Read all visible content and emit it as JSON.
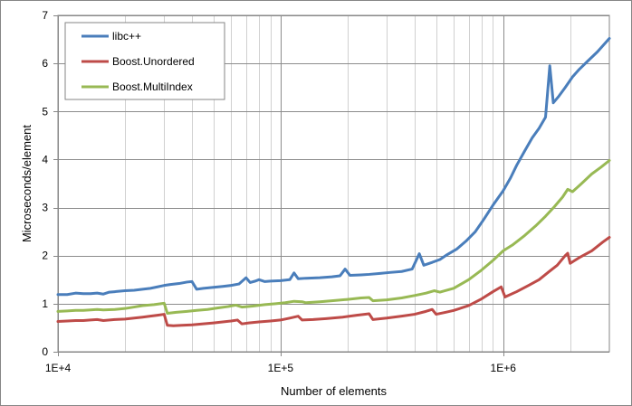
{
  "chart_data": {
    "type": "line",
    "title": "",
    "xlabel": "Number of elements",
    "ylabel": "Microseconds/element",
    "x_scale": "log",
    "xlim": [
      10000,
      3000000
    ],
    "ylim": [
      0,
      7
    ],
    "x_major_ticks": [
      10000,
      100000,
      1000000
    ],
    "x_tick_labels": [
      "1E+4",
      "1E+5",
      "1E+6"
    ],
    "y_ticks": [
      0,
      1,
      2,
      3,
      4,
      5,
      6,
      7
    ],
    "y_tick_labels": [
      "0",
      "1",
      "2",
      "3",
      "4",
      "5",
      "6",
      "7"
    ],
    "grid": "major and minor vertical, major horizontal",
    "legend_position": "top-left",
    "series": [
      {
        "name": "libc++",
        "color": "#4a7ebb",
        "points": [
          [
            10000,
            1.19
          ],
          [
            11000,
            1.19
          ],
          [
            12000,
            1.22
          ],
          [
            13000,
            1.21
          ],
          [
            14000,
            1.21
          ],
          [
            15000,
            1.22
          ],
          [
            16000,
            1.2
          ],
          [
            17000,
            1.24
          ],
          [
            18000,
            1.25
          ],
          [
            20000,
            1.27
          ],
          [
            22000,
            1.28
          ],
          [
            24000,
            1.3
          ],
          [
            26000,
            1.32
          ],
          [
            28000,
            1.35
          ],
          [
            30000,
            1.38
          ],
          [
            32000,
            1.4
          ],
          [
            35000,
            1.42
          ],
          [
            38000,
            1.45
          ],
          [
            40000,
            1.46
          ],
          [
            42000,
            1.3
          ],
          [
            45000,
            1.32
          ],
          [
            50000,
            1.34
          ],
          [
            55000,
            1.36
          ],
          [
            60000,
            1.38
          ],
          [
            65000,
            1.41
          ],
          [
            70000,
            1.54
          ],
          [
            73000,
            1.44
          ],
          [
            77000,
            1.47
          ],
          [
            80000,
            1.5
          ],
          [
            85000,
            1.46
          ],
          [
            90000,
            1.47
          ],
          [
            100000,
            1.48
          ],
          [
            110000,
            1.5
          ],
          [
            115000,
            1.64
          ],
          [
            120000,
            1.52
          ],
          [
            130000,
            1.53
          ],
          [
            150000,
            1.54
          ],
          [
            170000,
            1.56
          ],
          [
            185000,
            1.58
          ],
          [
            195000,
            1.72
          ],
          [
            205000,
            1.59
          ],
          [
            230000,
            1.6
          ],
          [
            250000,
            1.61
          ],
          [
            280000,
            1.63
          ],
          [
            310000,
            1.65
          ],
          [
            350000,
            1.67
          ],
          [
            390000,
            1.72
          ],
          [
            420000,
            2.04
          ],
          [
            440000,
            1.8
          ],
          [
            480000,
            1.86
          ],
          [
            520000,
            1.92
          ],
          [
            560000,
            2.02
          ],
          [
            620000,
            2.14
          ],
          [
            680000,
            2.3
          ],
          [
            750000,
            2.5
          ],
          [
            820000,
            2.76
          ],
          [
            900000,
            3.05
          ],
          [
            1000000,
            3.35
          ],
          [
            1080000,
            3.62
          ],
          [
            1150000,
            3.88
          ],
          [
            1250000,
            4.18
          ],
          [
            1350000,
            4.45
          ],
          [
            1450000,
            4.65
          ],
          [
            1550000,
            4.88
          ],
          [
            1620000,
            5.95
          ],
          [
            1680000,
            5.18
          ],
          [
            1780000,
            5.32
          ],
          [
            1900000,
            5.5
          ],
          [
            2050000,
            5.72
          ],
          [
            2200000,
            5.88
          ],
          [
            2400000,
            6.05
          ],
          [
            2650000,
            6.24
          ],
          [
            3000000,
            6.52
          ]
        ]
      },
      {
        "name": "Boost.Unordered",
        "color": "#be4b48",
        "points": [
          [
            10000,
            0.63
          ],
          [
            11000,
            0.64
          ],
          [
            12000,
            0.65
          ],
          [
            13000,
            0.65
          ],
          [
            14000,
            0.66
          ],
          [
            15000,
            0.67
          ],
          [
            16000,
            0.65
          ],
          [
            18000,
            0.67
          ],
          [
            20000,
            0.68
          ],
          [
            22000,
            0.7
          ],
          [
            24000,
            0.72
          ],
          [
            26000,
            0.74
          ],
          [
            28000,
            0.76
          ],
          [
            30000,
            0.78
          ],
          [
            31000,
            0.55
          ],
          [
            33000,
            0.54
          ],
          [
            36000,
            0.55
          ],
          [
            40000,
            0.56
          ],
          [
            45000,
            0.58
          ],
          [
            50000,
            0.6
          ],
          [
            55000,
            0.62
          ],
          [
            60000,
            0.64
          ],
          [
            64000,
            0.66
          ],
          [
            67000,
            0.58
          ],
          [
            72000,
            0.6
          ],
          [
            80000,
            0.62
          ],
          [
            90000,
            0.64
          ],
          [
            100000,
            0.66
          ],
          [
            110000,
            0.7
          ],
          [
            120000,
            0.74
          ],
          [
            125000,
            0.66
          ],
          [
            140000,
            0.67
          ],
          [
            160000,
            0.69
          ],
          [
            190000,
            0.72
          ],
          [
            220000,
            0.76
          ],
          [
            250000,
            0.79
          ],
          [
            260000,
            0.67
          ],
          [
            300000,
            0.7
          ],
          [
            350000,
            0.74
          ],
          [
            400000,
            0.78
          ],
          [
            450000,
            0.84
          ],
          [
            480000,
            0.88
          ],
          [
            500000,
            0.78
          ],
          [
            550000,
            0.82
          ],
          [
            600000,
            0.86
          ],
          [
            700000,
            0.96
          ],
          [
            800000,
            1.1
          ],
          [
            900000,
            1.25
          ],
          [
            980000,
            1.35
          ],
          [
            1020000,
            1.14
          ],
          [
            1150000,
            1.25
          ],
          [
            1300000,
            1.38
          ],
          [
            1450000,
            1.5
          ],
          [
            1600000,
            1.66
          ],
          [
            1750000,
            1.8
          ],
          [
            1900000,
            2.0
          ],
          [
            1950000,
            2.05
          ],
          [
            2000000,
            1.84
          ],
          [
            2200000,
            1.96
          ],
          [
            2500000,
            2.1
          ],
          [
            2800000,
            2.28
          ],
          [
            3000000,
            2.38
          ]
        ]
      },
      {
        "name": "Boost.MultiIndex",
        "color": "#98b954",
        "points": [
          [
            10000,
            0.84
          ],
          [
            11000,
            0.85
          ],
          [
            12000,
            0.86
          ],
          [
            13000,
            0.86
          ],
          [
            14000,
            0.87
          ],
          [
            15000,
            0.88
          ],
          [
            16000,
            0.87
          ],
          [
            18000,
            0.88
          ],
          [
            20000,
            0.9
          ],
          [
            22000,
            0.93
          ],
          [
            24000,
            0.96
          ],
          [
            27000,
            0.98
          ],
          [
            30000,
            1.01
          ],
          [
            31000,
            0.8
          ],
          [
            34000,
            0.82
          ],
          [
            38000,
            0.84
          ],
          [
            42000,
            0.86
          ],
          [
            47000,
            0.88
          ],
          [
            52000,
            0.91
          ],
          [
            58000,
            0.94
          ],
          [
            63000,
            0.97
          ],
          [
            67000,
            0.93
          ],
          [
            75000,
            0.95
          ],
          [
            85000,
            0.98
          ],
          [
            95000,
            1.0
          ],
          [
            105000,
            1.02
          ],
          [
            115000,
            1.05
          ],
          [
            125000,
            1.04
          ],
          [
            130000,
            1.02
          ],
          [
            150000,
            1.04
          ],
          [
            170000,
            1.06
          ],
          [
            200000,
            1.09
          ],
          [
            230000,
            1.12
          ],
          [
            250000,
            1.13
          ],
          [
            260000,
            1.06
          ],
          [
            300000,
            1.08
          ],
          [
            350000,
            1.12
          ],
          [
            400000,
            1.17
          ],
          [
            450000,
            1.22
          ],
          [
            490000,
            1.27
          ],
          [
            520000,
            1.24
          ],
          [
            600000,
            1.32
          ],
          [
            700000,
            1.5
          ],
          [
            800000,
            1.7
          ],
          [
            900000,
            1.9
          ],
          [
            1000000,
            2.1
          ],
          [
            1100000,
            2.22
          ],
          [
            1250000,
            2.42
          ],
          [
            1400000,
            2.62
          ],
          [
            1550000,
            2.82
          ],
          [
            1700000,
            3.02
          ],
          [
            1850000,
            3.22
          ],
          [
            1950000,
            3.38
          ],
          [
            2050000,
            3.33
          ],
          [
            2250000,
            3.5
          ],
          [
            2500000,
            3.7
          ],
          [
            2750000,
            3.84
          ],
          [
            3000000,
            3.98
          ]
        ]
      }
    ]
  }
}
